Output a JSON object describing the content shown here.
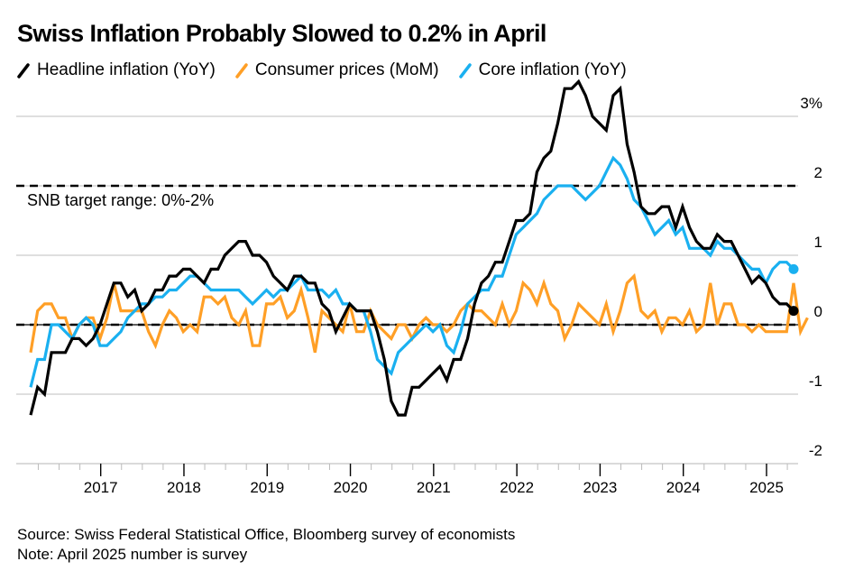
{
  "title": "Swiss Inflation Probably Slowed to 0.2% in April",
  "legend": [
    {
      "label": "Headline inflation (YoY)",
      "color": "#000000"
    },
    {
      "label": "Consumer prices (MoM)",
      "color": "#ff9f26"
    },
    {
      "label": "Core inflation (YoY)",
      "color": "#1ab0f0"
    }
  ],
  "footer": {
    "source": "Source: Swiss Federal Statistical Office, Bloomberg survey of economists",
    "note": "Note: April 2025 number is survey"
  },
  "chart_data": {
    "type": "line",
    "title": "Swiss Inflation Probably Slowed to 0.2% in April",
    "xlabel": "",
    "ylabel": "%",
    "x_start": "2016-02",
    "x_end": "2025-04",
    "x_tick_labels": [
      "2017",
      "2018",
      "2019",
      "2020",
      "2021",
      "2022",
      "2023",
      "2024",
      "2025"
    ],
    "y_tick_labels": [
      "3%",
      "2",
      "1",
      "0",
      "-1",
      "-2"
    ],
    "y_ticks": [
      3,
      2,
      1,
      0,
      -1,
      -2
    ],
    "ylim": [
      -2.0,
      3.4
    ],
    "grid": true,
    "legend_position": "top-left",
    "reference_lines": [
      {
        "value": 2,
        "style": "dashed",
        "label": "SNB target range: 0%-2%"
      },
      {
        "value": 0,
        "style": "dashed",
        "label": ""
      }
    ],
    "annotation": "SNB target range: 0%-2%",
    "series": [
      {
        "name": "Headline inflation (YoY)",
        "color": "#000000",
        "end_marker": true,
        "values": [
          -1.3,
          -0.9,
          -1.0,
          -0.4,
          -0.4,
          -0.4,
          -0.2,
          -0.2,
          -0.3,
          -0.2,
          0.0,
          0.3,
          0.6,
          0.6,
          0.4,
          0.5,
          0.2,
          0.3,
          0.5,
          0.5,
          0.7,
          0.7,
          0.8,
          0.8,
          0.7,
          0.6,
          0.8,
          0.8,
          1.0,
          1.1,
          1.2,
          1.2,
          1.0,
          1.0,
          0.9,
          0.7,
          0.6,
          0.5,
          0.7,
          0.7,
          0.6,
          0.6,
          0.3,
          0.2,
          -0.1,
          0.1,
          0.3,
          0.2,
          0.2,
          0.2,
          -0.1,
          -0.5,
          -1.1,
          -1.3,
          -1.3,
          -0.9,
          -0.9,
          -0.8,
          -0.7,
          -0.6,
          -0.8,
          -0.5,
          -0.5,
          -0.2,
          0.3,
          0.6,
          0.7,
          0.9,
          0.9,
          1.2,
          1.5,
          1.5,
          1.6,
          2.2,
          2.4,
          2.5,
          2.9,
          3.4,
          3.4,
          3.5,
          3.3,
          3.0,
          2.9,
          2.8,
          3.3,
          3.4,
          2.6,
          2.2,
          1.7,
          1.6,
          1.6,
          1.7,
          1.7,
          1.4,
          1.7,
          1.4,
          1.2,
          1.1,
          1.1,
          1.3,
          1.2,
          1.2,
          1.0,
          0.8,
          0.6,
          0.7,
          0.6,
          0.4,
          0.3,
          0.3,
          0.2
        ]
      },
      {
        "name": "Consumer prices (MoM)",
        "color": "#ff9f26",
        "end_marker": false,
        "values": [
          -0.4,
          0.2,
          0.3,
          0.3,
          0.1,
          0.1,
          -0.2,
          0.0,
          0.1,
          0.1,
          -0.2,
          0.1,
          0.6,
          0.2,
          0.2,
          0.2,
          0.2,
          -0.1,
          -0.3,
          0.0,
          0.2,
          0.1,
          -0.1,
          0.0,
          -0.1,
          0.4,
          0.4,
          0.3,
          0.4,
          0.1,
          0.0,
          0.2,
          -0.3,
          -0.3,
          0.3,
          0.3,
          0.4,
          0.1,
          0.2,
          0.5,
          0.1,
          -0.4,
          0.2,
          0.1,
          0.0,
          -0.1,
          0.3,
          -0.1,
          -0.1,
          0.2,
          0.0,
          -0.1,
          -0.2,
          0.0,
          0.0,
          -0.2,
          0.0,
          0.1,
          0.0,
          0.0,
          -0.1,
          0.0,
          0.2,
          0.3,
          0.2,
          0.2,
          0.1,
          0.0,
          0.3,
          0.0,
          0.2,
          0.6,
          0.5,
          0.3,
          0.6,
          0.3,
          0.2,
          -0.2,
          0.0,
          0.3,
          0.2,
          0.1,
          0.0,
          0.3,
          -0.1,
          0.2,
          0.6,
          0.7,
          0.2,
          0.1,
          0.2,
          -0.1,
          0.1,
          0.1,
          0.0,
          0.2,
          -0.1,
          0.0,
          0.6,
          0.0,
          0.3,
          0.3,
          0.0,
          0.0,
          -0.1,
          0.0,
          -0.1,
          -0.1,
          -0.1,
          -0.1,
          0.6,
          -0.1,
          0.1
        ]
      },
      {
        "name": "Core inflation (YoY)",
        "color": "#1ab0f0",
        "end_marker": true,
        "values": [
          -0.9,
          -0.5,
          -0.5,
          0.0,
          0.0,
          -0.1,
          -0.2,
          0.0,
          0.1,
          0.0,
          -0.3,
          -0.3,
          -0.2,
          -0.1,
          0.1,
          0.2,
          0.3,
          0.3,
          0.4,
          0.4,
          0.5,
          0.5,
          0.6,
          0.7,
          0.7,
          0.6,
          0.5,
          0.5,
          0.5,
          0.5,
          0.5,
          0.4,
          0.3,
          0.4,
          0.5,
          0.4,
          0.5,
          0.5,
          0.6,
          0.7,
          0.5,
          0.5,
          0.5,
          0.4,
          0.5,
          0.3,
          0.3,
          0.2,
          0.2,
          -0.1,
          -0.5,
          -0.6,
          -0.7,
          -0.4,
          -0.3,
          -0.2,
          -0.1,
          0.0,
          -0.1,
          0.0,
          -0.3,
          -0.4,
          -0.1,
          0.3,
          0.4,
          0.5,
          0.5,
          0.7,
          0.7,
          1.0,
          1.3,
          1.4,
          1.5,
          1.6,
          1.8,
          1.9,
          2.0,
          2.0,
          2.0,
          1.9,
          1.8,
          1.9,
          2.0,
          2.2,
          2.4,
          2.3,
          2.1,
          1.8,
          1.7,
          1.5,
          1.3,
          1.4,
          1.5,
          1.3,
          1.4,
          1.1,
          1.1,
          1.1,
          1.0,
          1.2,
          1.1,
          1.1,
          1.0,
          0.9,
          0.8,
          0.8,
          0.6,
          0.8,
          0.9,
          0.9,
          0.8
        ]
      }
    ]
  }
}
